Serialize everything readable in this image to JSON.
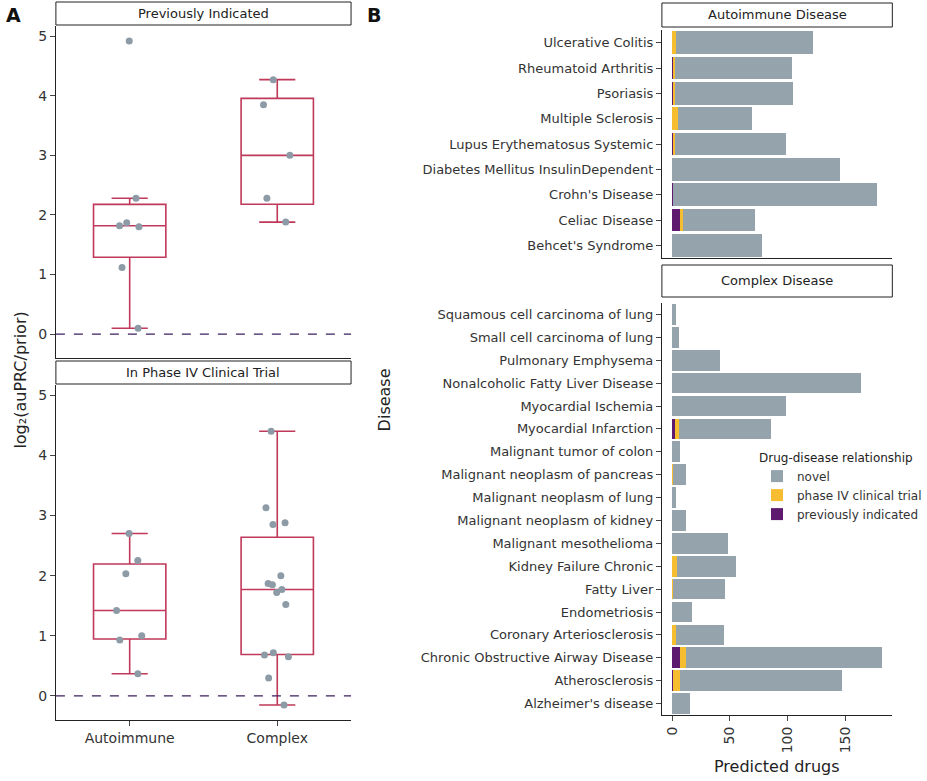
{
  "chart_data": [
    {
      "type": "box",
      "title": "A",
      "y_label": "log₂(auPRC/prior)",
      "categories": [
        "Autoimmune",
        "Complex"
      ],
      "ylim": [
        -0.4,
        5.17
      ],
      "yticks": [
        0,
        1,
        2,
        3,
        4,
        5
      ],
      "grid": false,
      "color": "#c0395a",
      "reference_line": {
        "value": 0,
        "color": "#3b1f5e",
        "line_style": "dashed"
      },
      "panels": [
        {
          "title": "Previously Indicated",
          "series": [
            {
              "name": "Autoimmune",
              "color": "#8d9ba6",
              "values": [
                4.92,
                2.28,
                1.87,
                1.82,
                1.8,
                1.12,
                0.1
              ]
            },
            {
              "name": "Complex",
              "color": "#8d9ba6",
              "values": [
                4.27,
                3.85,
                3.0,
                2.28,
                1.88
              ]
            }
          ]
        },
        {
          "title": "In Phase IV Clinical Trial",
          "series": [
            {
              "name": "Autoimmune",
              "color": "#8d9ba6",
              "values": [
                2.7,
                2.25,
                2.03,
                1.42,
                1.0,
                0.93,
                0.37
              ]
            },
            {
              "name": "Complex",
              "color": "#8d9ba6",
              "values": [
                4.4,
                3.13,
                2.88,
                2.85,
                2.0,
                1.87,
                1.85,
                1.77,
                1.72,
                1.52,
                0.72,
                0.68,
                0.65,
                0.3,
                -0.15
              ]
            }
          ]
        }
      ]
    },
    {
      "type": "bar",
      "title": "B",
      "orientation": "horizontal",
      "stacked": true,
      "x_label": "Predicted drugs",
      "y_label": "Disease",
      "xlim": [
        -9,
        191
      ],
      "xticks": [
        0,
        50,
        100,
        150
      ],
      "grid": false,
      "legend": "right",
      "legend_title": "Drug-disease relationship",
      "panels": [
        {
          "title": "Autoimmune Disease",
          "categories": [
            "Ulcerative Colitis",
            "Rheumatoid Arthritis",
            "Psoriasis",
            "Multiple Sclerosis",
            "Lupus Erythematosus Systemic",
            "Diabetes Mellitus InsulinDependent",
            "Crohn's Disease",
            "Celiac Disease",
            "Behcet's Syndrome"
          ],
          "series": [
            {
              "name": "previously indicated",
              "color": "#5e1a6e",
              "values": [
                0,
                1,
                1,
                0,
                1,
                0,
                1,
                7,
                0
              ]
            },
            {
              "name": "phase IV clinical trial",
              "color": "#f6bd30",
              "values": [
                3,
                1,
                1,
                5,
                1,
                0,
                0,
                2,
                0
              ]
            },
            {
              "name": "novel",
              "color": "#95a3ad",
              "values": [
                119,
                102,
                103,
                64,
                97,
                146,
                177,
                63,
                78
              ]
            }
          ]
        },
        {
          "title": "Complex Disease",
          "categories": [
            "Squamous cell carcinoma of lung",
            "Small cell carcinoma of lung",
            "Pulmonary Emphysema",
            "Nonalcoholic Fatty Liver Disease",
            "Myocardial Ischemia",
            "Myocardial Infarction",
            "Malignant tumor of colon",
            "Malignant neoplasm of pancreas",
            "Malignant neoplasm of lung",
            "Malignant neoplasm of kidney",
            "Malignant mesothelioma",
            "Kidney Failure Chronic",
            "Fatty Liver",
            "Endometriosis",
            "Coronary Arteriosclerosis",
            "Chronic Obstructive Airway Disease",
            "Atherosclerosis",
            "Alzheimer's disease"
          ],
          "series": [
            {
              "name": "previously indicated",
              "color": "#5e1a6e",
              "values": [
                0,
                0,
                0,
                0,
                0,
                2,
                0,
                0,
                0,
                0,
                0,
                0,
                0,
                0,
                0,
                7,
                1,
                0
              ]
            },
            {
              "name": "phase IV clinical trial",
              "color": "#f6bd30",
              "values": [
                0,
                0,
                0,
                0,
                0,
                4,
                0,
                1,
                0,
                0,
                0,
                4,
                1,
                0,
                3,
                5,
                6,
                0
              ]
            },
            {
              "name": "novel",
              "color": "#95a3ad",
              "values": [
                3,
                6,
                41,
                164,
                99,
                80,
                7,
                11,
                3,
                12,
                48,
                51,
                45,
                17,
                42,
                170,
                140,
                15
              ]
            }
          ]
        }
      ]
    }
  ]
}
